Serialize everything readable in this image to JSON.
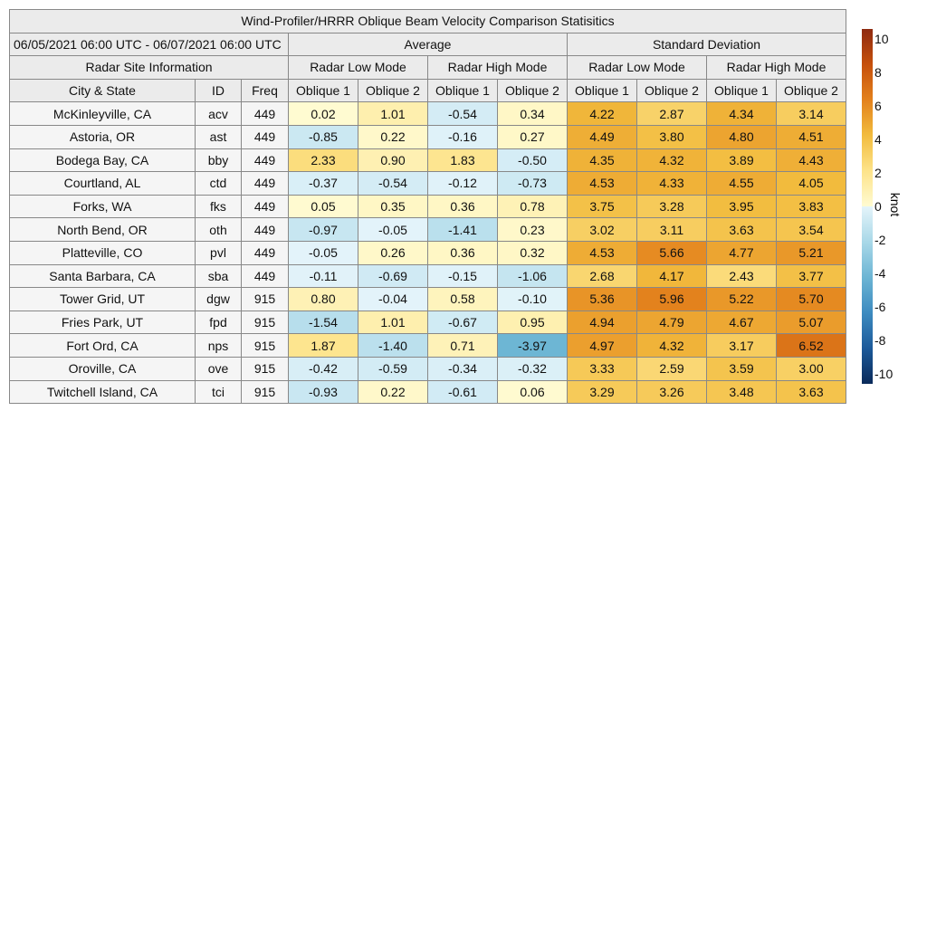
{
  "chart_data": {
    "type": "heatmap",
    "title": "Wind-Profiler/HRRR Oblique Beam Velocity Comparison Statisitics",
    "date_range": "06/05/2021 06:00 UTC - 06/07/2021 06:00 UTC",
    "site_header": "Radar Site Information",
    "groups": [
      "Average",
      "Standard Deviation"
    ],
    "modes": [
      "Radar Low Mode",
      "Radar High Mode",
      "Radar Low Mode",
      "Radar High Mode"
    ],
    "columns": [
      "City & State",
      "ID",
      "Freq",
      "Oblique 1",
      "Oblique 2",
      "Oblique 1",
      "Oblique 2",
      "Oblique 1",
      "Oblique 2",
      "Oblique 1",
      "Oblique 2"
    ],
    "rows": [
      {
        "city": "McKinleyville, CA",
        "id": "acv",
        "freq": "449",
        "values": [
          0.02,
          1.01,
          -0.54,
          0.34,
          4.22,
          2.87,
          4.34,
          3.14
        ]
      },
      {
        "city": "Astoria, OR",
        "id": "ast",
        "freq": "449",
        "values": [
          -0.85,
          0.22,
          -0.16,
          0.27,
          4.49,
          3.8,
          4.8,
          4.51
        ]
      },
      {
        "city": "Bodega Bay, CA",
        "id": "bby",
        "freq": "449",
        "values": [
          2.33,
          0.9,
          1.83,
          -0.5,
          4.35,
          4.32,
          3.89,
          4.43
        ]
      },
      {
        "city": "Courtland, AL",
        "id": "ctd",
        "freq": "449",
        "values": [
          -0.37,
          -0.54,
          -0.12,
          -0.73,
          4.53,
          4.33,
          4.55,
          4.05
        ]
      },
      {
        "city": "Forks, WA",
        "id": "fks",
        "freq": "449",
        "values": [
          0.05,
          0.35,
          0.36,
          0.78,
          3.75,
          3.28,
          3.95,
          3.83
        ]
      },
      {
        "city": "North Bend, OR",
        "id": "oth",
        "freq": "449",
        "values": [
          -0.97,
          -0.05,
          -1.41,
          0.23,
          3.02,
          3.11,
          3.63,
          3.54
        ]
      },
      {
        "city": "Platteville, CO",
        "id": "pvl",
        "freq": "449",
        "values": [
          -0.05,
          0.26,
          0.36,
          0.32,
          4.53,
          5.66,
          4.77,
          5.21
        ]
      },
      {
        "city": "Santa Barbara, CA",
        "id": "sba",
        "freq": "449",
        "values": [
          -0.11,
          -0.69,
          -0.15,
          -1.06,
          2.68,
          4.17,
          2.43,
          3.77
        ]
      },
      {
        "city": "Tower Grid, UT",
        "id": "dgw",
        "freq": "915",
        "values": [
          0.8,
          -0.04,
          0.58,
          -0.1,
          5.36,
          5.96,
          5.22,
          5.7
        ]
      },
      {
        "city": "Fries Park, UT",
        "id": "fpd",
        "freq": "915",
        "values": [
          -1.54,
          1.01,
          -0.67,
          0.95,
          4.94,
          4.79,
          4.67,
          5.07
        ]
      },
      {
        "city": "Fort Ord, CA",
        "id": "nps",
        "freq": "915",
        "values": [
          1.87,
          -1.4,
          0.71,
          -3.97,
          4.97,
          4.32,
          3.17,
          6.52
        ]
      },
      {
        "city": "Oroville, CA",
        "id": "ove",
        "freq": "915",
        "values": [
          -0.42,
          -0.59,
          -0.34,
          -0.32,
          3.33,
          2.59,
          3.59,
          3.0
        ]
      },
      {
        "city": "Twitchell Island, CA",
        "id": "tci",
        "freq": "915",
        "values": [
          -0.93,
          0.22,
          -0.61,
          0.06,
          3.29,
          3.26,
          3.48,
          3.63
        ]
      }
    ],
    "colorbar": {
      "label": "knot",
      "range": [
        -10,
        10
      ],
      "ticks": [
        "10",
        "8",
        "6",
        "4",
        "2",
        "0",
        "-2",
        "-4",
        "-6",
        "-8",
        "-10"
      ],
      "neg_colors": [
        "#e4f4fa",
        "#a9d8e8",
        "#6cb5d4",
        "#3d8bc0",
        "#1c5a9a",
        "#0a2a5a"
      ],
      "pos_colors": [
        "#fffbd2",
        "#fde38a",
        "#f2bc3e",
        "#e3811c",
        "#c6500c",
        "#8e2a10"
      ]
    }
  }
}
